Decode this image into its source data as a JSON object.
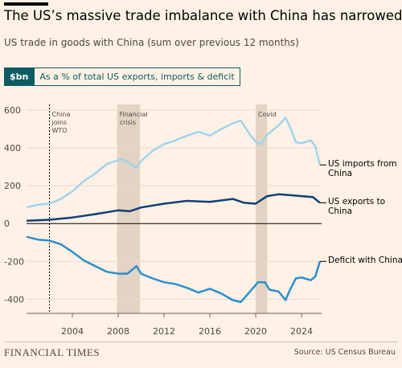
{
  "chart_data": {
    "type": "line",
    "title": "The US’s massive trade imbalance with China has narrowed",
    "subtitle": "US trade in goods with China (sum over previous 12 months)",
    "buttons": [
      "$bn",
      "As a % of total US exports, imports & deficit"
    ],
    "xlim": [
      2000,
      2025.75
    ],
    "xticks": [
      2004,
      2008,
      2012,
      2016,
      2020,
      2024
    ],
    "ylim": [
      -475,
      630
    ],
    "yticks": [
      600,
      400,
      200,
      0,
      -200,
      -400
    ],
    "grid": true,
    "annotations": [
      {
        "text": "China joins WTO",
        "x": 2002,
        "style": "dashed-line"
      },
      {
        "text": "Financial crisis",
        "x": [
          2007.9,
          2009.9
        ],
        "style": "band"
      },
      {
        "text": "Covid",
        "x": [
          2020,
          2021
        ],
        "style": "band"
      }
    ],
    "series": [
      {
        "name": "US imports from China",
        "color": "#9fd4ee",
        "x": [
          2000,
          2001,
          2002,
          2003,
          2004,
          2005,
          2006,
          2007,
          2008,
          2008.5,
          2009.3,
          2009.6,
          2010,
          2011,
          2012,
          2013,
          2014,
          2015,
          2016,
          2017,
          2018,
          2018.7,
          2019.5,
          2020.2,
          2020.6,
          2021,
          2022,
          2022.6,
          2023,
          2023.5,
          2024,
          2024.8,
          2025.2,
          2025.6
        ],
        "values": [
          85,
          100,
          105,
          130,
          170,
          225,
          265,
          315,
          335,
          340,
          305,
          295,
          330,
          385,
          420,
          440,
          465,
          485,
          465,
          500,
          530,
          545,
          470,
          420,
          430,
          470,
          520,
          560,
          510,
          430,
          425,
          440,
          410,
          310
        ]
      },
      {
        "name": "US exports to China",
        "color": "#0f3f78",
        "x": [
          2000,
          2002,
          2004,
          2006,
          2008,
          2009,
          2010,
          2012,
          2014,
          2016,
          2018,
          2019,
          2020,
          2021,
          2022,
          2023,
          2024,
          2025,
          2025.6
        ],
        "values": [
          15,
          20,
          32,
          50,
          70,
          65,
          85,
          105,
          120,
          115,
          130,
          110,
          105,
          145,
          155,
          150,
          145,
          140,
          110
        ]
      },
      {
        "name": "Deficit with China",
        "color": "#2a8fcd",
        "x": [
          2000,
          2001,
          2002,
          2003,
          2004,
          2005,
          2006,
          2007,
          2008,
          2008.8,
          2009.6,
          2010,
          2011,
          2012,
          2013,
          2014,
          2015,
          2016,
          2017,
          2018,
          2018.7,
          2019.5,
          2020.2,
          2020.8,
          2021.2,
          2022,
          2022.6,
          2023,
          2023.5,
          2024,
          2024.8,
          2025.2,
          2025.6
        ],
        "values": [
          -70,
          -85,
          -90,
          -110,
          -150,
          -195,
          -225,
          -255,
          -265,
          -265,
          -225,
          -265,
          -290,
          -310,
          -320,
          -340,
          -365,
          -345,
          -370,
          -405,
          -415,
          -360,
          -310,
          -310,
          -350,
          -360,
          -405,
          -350,
          -290,
          -285,
          -300,
          -280,
          -200
        ]
      }
    ],
    "brand": "FINANCIAL TIMES",
    "source": "Source: US Census Bureau"
  }
}
